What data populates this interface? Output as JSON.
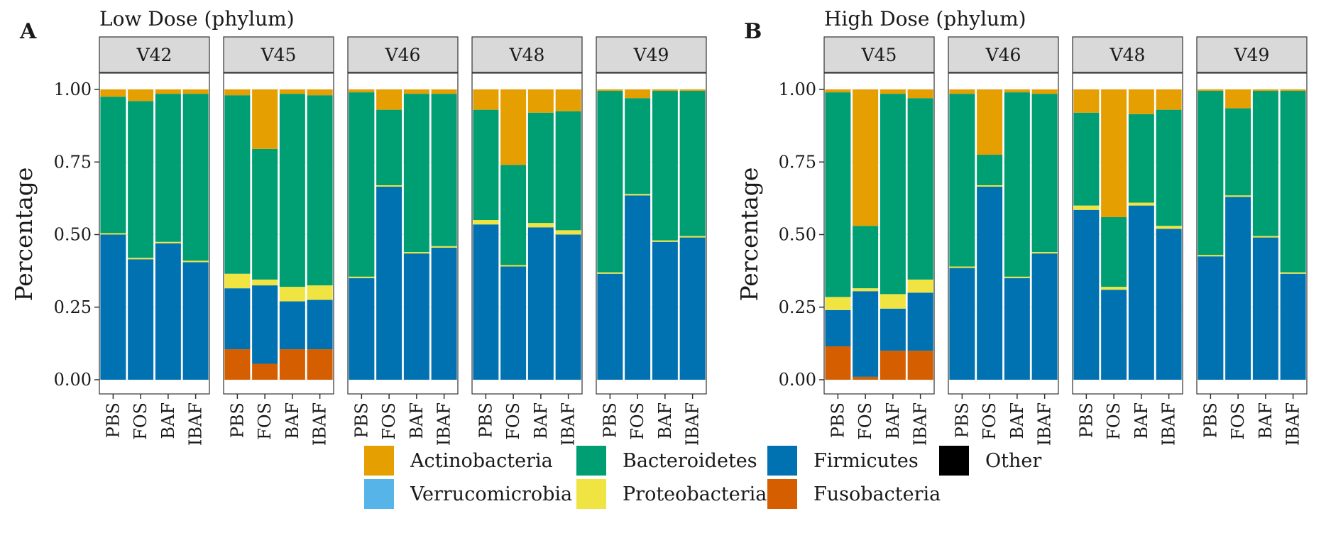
{
  "chart_data": [
    {
      "type": "bar",
      "stacked": true,
      "panel_letter": "A",
      "title": "Low Dose (phylum)",
      "ylabel": "Percentage",
      "ylim": [
        0,
        1
      ],
      "yticks": [
        "0.00",
        "0.25",
        "0.50",
        "0.75",
        "1.00"
      ],
      "categories": [
        "PBS",
        "FOS",
        "BAF",
        "IBAF"
      ],
      "facets": [
        {
          "name": "V42",
          "bars": [
            {
              "Fusobacteria": 0,
              "Firmicutes": 0.5,
              "Proteobacteria": 0.005,
              "Bacteroidetes": 0.47,
              "Actinobacteria": 0.025
            },
            {
              "Fusobacteria": 0,
              "Firmicutes": 0.415,
              "Proteobacteria": 0.005,
              "Bacteroidetes": 0.54,
              "Actinobacteria": 0.04
            },
            {
              "Fusobacteria": 0,
              "Firmicutes": 0.47,
              "Proteobacteria": 0.005,
              "Bacteroidetes": 0.51,
              "Actinobacteria": 0.015
            },
            {
              "Fusobacteria": 0,
              "Firmicutes": 0.405,
              "Proteobacteria": 0.005,
              "Bacteroidetes": 0.575,
              "Actinobacteria": 0.015
            }
          ]
        },
        {
          "name": "V45",
          "bars": [
            {
              "Fusobacteria": 0.105,
              "Firmicutes": 0.21,
              "Proteobacteria": 0.05,
              "Bacteroidetes": 0.615,
              "Actinobacteria": 0.02
            },
            {
              "Fusobacteria": 0.055,
              "Firmicutes": 0.27,
              "Proteobacteria": 0.02,
              "Bacteroidetes": 0.45,
              "Actinobacteria": 0.205
            },
            {
              "Fusobacteria": 0.105,
              "Firmicutes": 0.165,
              "Proteobacteria": 0.05,
              "Bacteroidetes": 0.665,
              "Actinobacteria": 0.015
            },
            {
              "Fusobacteria": 0.105,
              "Firmicutes": 0.17,
              "Proteobacteria": 0.05,
              "Bacteroidetes": 0.655,
              "Actinobacteria": 0.02
            }
          ]
        },
        {
          "name": "V46",
          "bars": [
            {
              "Fusobacteria": 0,
              "Firmicutes": 0.35,
              "Proteobacteria": 0.005,
              "Bacteroidetes": 0.635,
              "Actinobacteria": 0.01
            },
            {
              "Fusobacteria": 0,
              "Firmicutes": 0.665,
              "Proteobacteria": 0.005,
              "Bacteroidetes": 0.26,
              "Actinobacteria": 0.07
            },
            {
              "Fusobacteria": 0,
              "Firmicutes": 0.435,
              "Proteobacteria": 0.005,
              "Bacteroidetes": 0.545,
              "Actinobacteria": 0.015
            },
            {
              "Fusobacteria": 0,
              "Firmicutes": 0.455,
              "Proteobacteria": 0.005,
              "Bacteroidetes": 0.525,
              "Actinobacteria": 0.015
            }
          ]
        },
        {
          "name": "V48",
          "bars": [
            {
              "Fusobacteria": 0,
              "Firmicutes": 0.535,
              "Proteobacteria": 0.015,
              "Bacteroidetes": 0.38,
              "Actinobacteria": 0.07
            },
            {
              "Fusobacteria": 0,
              "Firmicutes": 0.39,
              "Proteobacteria": 0.005,
              "Bacteroidetes": 0.345,
              "Actinobacteria": 0.26
            },
            {
              "Fusobacteria": 0,
              "Firmicutes": 0.525,
              "Proteobacteria": 0.015,
              "Bacteroidetes": 0.38,
              "Actinobacteria": 0.08
            },
            {
              "Fusobacteria": 0,
              "Firmicutes": 0.5,
              "Proteobacteria": 0.015,
              "Bacteroidetes": 0.41,
              "Actinobacteria": 0.075
            }
          ]
        },
        {
          "name": "V49",
          "bars": [
            {
              "Fusobacteria": 0,
              "Firmicutes": 0.365,
              "Proteobacteria": 0.005,
              "Bacteroidetes": 0.625,
              "Actinobacteria": 0.005
            },
            {
              "Fusobacteria": 0,
              "Firmicutes": 0.635,
              "Proteobacteria": 0.005,
              "Bacteroidetes": 0.33,
              "Actinobacteria": 0.03
            },
            {
              "Fusobacteria": 0,
              "Firmicutes": 0.475,
              "Proteobacteria": 0.005,
              "Bacteroidetes": 0.515,
              "Actinobacteria": 0.005
            },
            {
              "Fusobacteria": 0,
              "Firmicutes": 0.49,
              "Proteobacteria": 0.005,
              "Bacteroidetes": 0.5,
              "Actinobacteria": 0.005
            }
          ]
        }
      ]
    },
    {
      "type": "bar",
      "stacked": true,
      "panel_letter": "B",
      "title": "High Dose (phylum)",
      "ylabel": "Percentage",
      "ylim": [
        0,
        1
      ],
      "yticks": [
        "0.00",
        "0.25",
        "0.50",
        "0.75",
        "1.00"
      ],
      "categories": [
        "PBS",
        "FOS",
        "BAF",
        "IBAF"
      ],
      "facets": [
        {
          "name": "V45",
          "bars": [
            {
              "Fusobacteria": 0.115,
              "Firmicutes": 0.125,
              "Proteobacteria": 0.045,
              "Bacteroidetes": 0.705,
              "Actinobacteria": 0.01
            },
            {
              "Fusobacteria": 0.01,
              "Firmicutes": 0.295,
              "Proteobacteria": 0.01,
              "Bacteroidetes": 0.215,
              "Actinobacteria": 0.47
            },
            {
              "Fusobacteria": 0.1,
              "Firmicutes": 0.145,
              "Proteobacteria": 0.05,
              "Bacteroidetes": 0.69,
              "Actinobacteria": 0.015
            },
            {
              "Fusobacteria": 0.1,
              "Firmicutes": 0.2,
              "Proteobacteria": 0.045,
              "Bacteroidetes": 0.625,
              "Actinobacteria": 0.03
            }
          ]
        },
        {
          "name": "V46",
          "bars": [
            {
              "Fusobacteria": 0,
              "Firmicutes": 0.385,
              "Proteobacteria": 0.005,
              "Bacteroidetes": 0.595,
              "Actinobacteria": 0.015
            },
            {
              "Fusobacteria": 0,
              "Firmicutes": 0.665,
              "Proteobacteria": 0.005,
              "Bacteroidetes": 0.105,
              "Actinobacteria": 0.225
            },
            {
              "Fusobacteria": 0,
              "Firmicutes": 0.35,
              "Proteobacteria": 0.005,
              "Bacteroidetes": 0.635,
              "Actinobacteria": 0.01
            },
            {
              "Fusobacteria": 0,
              "Firmicutes": 0.435,
              "Proteobacteria": 0.005,
              "Bacteroidetes": 0.545,
              "Actinobacteria": 0.015
            }
          ]
        },
        {
          "name": "V48",
          "bars": [
            {
              "Fusobacteria": 0,
              "Firmicutes": 0.585,
              "Proteobacteria": 0.015,
              "Bacteroidetes": 0.32,
              "Actinobacteria": 0.08
            },
            {
              "Fusobacteria": 0,
              "Firmicutes": 0.31,
              "Proteobacteria": 0.01,
              "Bacteroidetes": 0.24,
              "Actinobacteria": 0.44
            },
            {
              "Fusobacteria": 0,
              "Firmicutes": 0.6,
              "Proteobacteria": 0.01,
              "Bacteroidetes": 0.305,
              "Actinobacteria": 0.085
            },
            {
              "Fusobacteria": 0,
              "Firmicutes": 0.52,
              "Proteobacteria": 0.01,
              "Bacteroidetes": 0.4,
              "Actinobacteria": 0.07
            }
          ]
        },
        {
          "name": "V49",
          "bars": [
            {
              "Fusobacteria": 0,
              "Firmicutes": 0.425,
              "Proteobacteria": 0.005,
              "Bacteroidetes": 0.565,
              "Actinobacteria": 0.005
            },
            {
              "Fusobacteria": 0,
              "Firmicutes": 0.63,
              "Proteobacteria": 0.005,
              "Bacteroidetes": 0.3,
              "Actinobacteria": 0.065
            },
            {
              "Fusobacteria": 0,
              "Firmicutes": 0.49,
              "Proteobacteria": 0.005,
              "Bacteroidetes": 0.5,
              "Actinobacteria": 0.005
            },
            {
              "Fusobacteria": 0,
              "Firmicutes": 0.365,
              "Proteobacteria": 0.005,
              "Bacteroidetes": 0.625,
              "Actinobacteria": 0.005
            }
          ]
        }
      ]
    }
  ],
  "stack_order": [
    "Other",
    "Fusobacteria",
    "Firmicutes",
    "Verrucomicrobia",
    "Proteobacteria",
    "Bacteroidetes",
    "Actinobacteria"
  ],
  "legend": {
    "placement": "bottom",
    "items": [
      {
        "label": "Actinobacteria",
        "color": "#E69F00"
      },
      {
        "label": "Bacteroidetes",
        "color": "#009E73"
      },
      {
        "label": "Firmicutes",
        "color": "#0072B2"
      },
      {
        "label": "Other",
        "color": "#000000"
      },
      {
        "label": "Verrucomicrobia",
        "color": "#56B4E9"
      },
      {
        "label": "Proteobacteria",
        "color": "#F0E442"
      },
      {
        "label": "Fusobacteria",
        "color": "#D55E00"
      }
    ]
  }
}
